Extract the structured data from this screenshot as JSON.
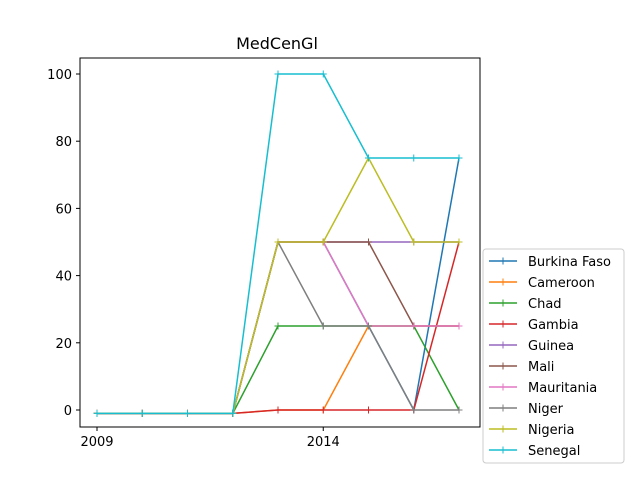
{
  "chart_data": {
    "type": "line",
    "title": "MedCenGl",
    "xlabel": "",
    "ylabel": "",
    "x": [
      2009,
      2010,
      2011,
      2012,
      2013,
      2014,
      2015,
      2016,
      2017
    ],
    "xlim": [
      2009,
      2017
    ],
    "ylim": [
      -1,
      100
    ],
    "x_ticks": [
      2009,
      2014
    ],
    "y_ticks": [
      0,
      20,
      40,
      60,
      80,
      100
    ],
    "grid": false,
    "legend_position": "lower-right outside",
    "series": [
      {
        "name": "Burkina Faso",
        "color": "#1f77b4",
        "values": [
          -1,
          -1,
          -1,
          -1,
          50,
          50,
          25,
          0,
          75
        ]
      },
      {
        "name": "Cameroon",
        "color": "#ff7f0e",
        "values": [
          -1,
          -1,
          -1,
          -1,
          0,
          0,
          25,
          25,
          25
        ]
      },
      {
        "name": "Chad",
        "color": "#2ca02c",
        "values": [
          -1,
          -1,
          -1,
          -1,
          25,
          25,
          25,
          25,
          0
        ]
      },
      {
        "name": "Gambia",
        "color": "#d62728",
        "values": [
          -1,
          -1,
          -1,
          -1,
          0,
          0,
          0,
          0,
          50
        ]
      },
      {
        "name": "Guinea",
        "color": "#9467bd",
        "values": [
          -1,
          -1,
          -1,
          -1,
          50,
          50,
          50,
          50,
          50
        ]
      },
      {
        "name": "Mali",
        "color": "#8c564b",
        "values": [
          -1,
          -1,
          -1,
          -1,
          50,
          50,
          50,
          25,
          25
        ]
      },
      {
        "name": "Mauritania",
        "color": "#e377c2",
        "values": [
          -1,
          -1,
          -1,
          -1,
          50,
          50,
          25,
          25,
          25
        ]
      },
      {
        "name": "Niger",
        "color": "#7f7f7f",
        "values": [
          -1,
          -1,
          -1,
          -1,
          50,
          25,
          25,
          0,
          0
        ]
      },
      {
        "name": "Nigeria",
        "color": "#bcbd22",
        "values": [
          -1,
          -1,
          -1,
          -1,
          50,
          50,
          75,
          50,
          50
        ]
      },
      {
        "name": "Senegal",
        "color": "#17becf",
        "values": [
          -1,
          -1,
          -1,
          -1,
          100,
          100,
          75,
          75,
          75
        ]
      }
    ]
  }
}
